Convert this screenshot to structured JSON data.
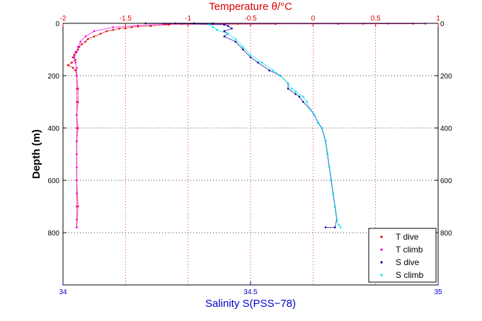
{
  "chart_data": {
    "type": "scatter",
    "title": "Temperature θ/°C",
    "xlabel": "Salinity S(PSS−78)",
    "ylabel": "Depth (m)",
    "x_bottom": {
      "label": "Salinity S(PSS−78)",
      "lim": [
        34,
        35
      ],
      "ticks": [
        34,
        34.5,
        35
      ],
      "tick_labels": [
        "34",
        "34.5",
        "35"
      ],
      "color": "#0000cc"
    },
    "x_top": {
      "label": "Temperature θ/°C",
      "lim": [
        -2,
        1
      ],
      "ticks": [
        -2,
        -1.5,
        -1,
        -0.5,
        0,
        0.5,
        1
      ],
      "tick_labels": [
        "-2",
        "-1.5",
        "-1",
        "-0.5",
        "0",
        "0.5",
        "1"
      ],
      "color": "#dd0000"
    },
    "y": {
      "label": "Depth (m)",
      "lim": [
        0,
        1000
      ],
      "reversed": true,
      "ticks": [
        0,
        200,
        400,
        600,
        800
      ],
      "tick_labels": [
        "0",
        "200",
        "400",
        "600",
        "800"
      ]
    },
    "grid": {
      "vertical": "red-dotted",
      "horizontal": "black-dotted"
    },
    "legend": {
      "placement": "bottom-right",
      "entries": [
        {
          "label": "T dive",
          "color": "#dd0000"
        },
        {
          "label": "T climb",
          "color": "#ee00ee"
        },
        {
          "label": "S dive",
          "color": "#000099"
        },
        {
          "label": "S climb",
          "color": "#00e5ee"
        }
      ]
    },
    "series": [
      {
        "name": "T dive",
        "axis": "top",
        "color": "#dd0000",
        "points": [
          [
            -1.05,
            2
          ],
          [
            -1.15,
            5
          ],
          [
            -1.3,
            10
          ],
          [
            -1.4,
            12
          ],
          [
            -1.45,
            15
          ],
          [
            -1.5,
            18
          ],
          [
            -1.55,
            20
          ],
          [
            -1.6,
            25
          ],
          [
            -1.65,
            30
          ],
          [
            -1.7,
            40
          ],
          [
            -1.75,
            50
          ],
          [
            -1.8,
            60
          ],
          [
            -1.82,
            70
          ],
          [
            -1.85,
            80
          ],
          [
            -1.87,
            90
          ],
          [
            -1.88,
            100
          ],
          [
            -1.9,
            110
          ],
          [
            -1.91,
            120
          ],
          [
            -1.92,
            130
          ],
          [
            -1.9,
            140
          ],
          [
            -1.93,
            150
          ],
          [
            -1.96,
            160
          ],
          [
            -1.92,
            170
          ],
          [
            -1.9,
            180
          ],
          [
            -1.89,
            200
          ],
          [
            -1.88,
            250
          ],
          [
            -1.88,
            300
          ],
          [
            -1.89,
            350
          ],
          [
            -1.88,
            400
          ],
          [
            -1.89,
            450
          ],
          [
            -1.89,
            500
          ],
          [
            -1.89,
            600
          ],
          [
            -1.88,
            700
          ],
          [
            -1.89,
            780
          ],
          [
            -0.6,
            2
          ],
          [
            -0.3,
            2
          ],
          [
            -0.8,
            3
          ],
          [
            0.4,
            1
          ],
          [
            0.8,
            1
          ],
          [
            -1.2,
            3
          ]
        ]
      },
      {
        "name": "T climb",
        "axis": "top",
        "color": "#ee00ee",
        "points": [
          [
            -1.0,
            1
          ],
          [
            -1.2,
            3
          ],
          [
            -1.4,
            8
          ],
          [
            -1.6,
            15
          ],
          [
            -1.75,
            30
          ],
          [
            -1.82,
            50
          ],
          [
            -1.86,
            70
          ],
          [
            -1.88,
            90
          ],
          [
            -1.89,
            110
          ],
          [
            -1.91,
            130
          ],
          [
            -1.9,
            150
          ],
          [
            -1.89,
            170
          ],
          [
            -1.89,
            200
          ],
          [
            -1.89,
            250
          ],
          [
            -1.89,
            300
          ],
          [
            -1.89,
            350
          ],
          [
            -1.89,
            400
          ],
          [
            -1.89,
            450
          ],
          [
            -1.89,
            500
          ],
          [
            -1.89,
            550
          ],
          [
            -1.89,
            600
          ],
          [
            -1.89,
            650
          ],
          [
            -1.89,
            700
          ],
          [
            -1.89,
            750
          ],
          [
            -1.89,
            780
          ],
          [
            0.6,
            1
          ],
          [
            0.9,
            1
          ],
          [
            0.2,
            2
          ],
          [
            -0.7,
            2
          ]
        ]
      },
      {
        "name": "S dive",
        "axis": "bottom",
        "color": "#000099",
        "points": [
          [
            34.4,
            0
          ],
          [
            34.43,
            5
          ],
          [
            34.44,
            10
          ],
          [
            34.45,
            20
          ],
          [
            34.43,
            30
          ],
          [
            34.44,
            40
          ],
          [
            34.43,
            50
          ],
          [
            34.46,
            70
          ],
          [
            34.48,
            100
          ],
          [
            34.5,
            130
          ],
          [
            34.52,
            150
          ],
          [
            34.55,
            180
          ],
          [
            34.58,
            200
          ],
          [
            34.6,
            230
          ],
          [
            34.6,
            250
          ],
          [
            34.62,
            270
          ],
          [
            34.63,
            280
          ],
          [
            34.64,
            300
          ],
          [
            34.66,
            330
          ],
          [
            34.67,
            350
          ],
          [
            34.68,
            380
          ],
          [
            34.69,
            400
          ],
          [
            34.7,
            450
          ],
          [
            34.705,
            500
          ],
          [
            34.71,
            550
          ],
          [
            34.715,
            600
          ],
          [
            34.72,
            650
          ],
          [
            34.725,
            700
          ],
          [
            34.73,
            750
          ],
          [
            34.725,
            780
          ],
          [
            34.7,
            780
          ],
          [
            34.22,
            0
          ],
          [
            34.35,
            0
          ],
          [
            34.3,
            0
          ]
        ]
      },
      {
        "name": "S climb",
        "axis": "bottom",
        "color": "#00e5ee",
        "points": [
          [
            34.39,
            5
          ],
          [
            34.4,
            15
          ],
          [
            34.41,
            25
          ],
          [
            34.44,
            40
          ],
          [
            34.46,
            60
          ],
          [
            34.48,
            90
          ],
          [
            34.5,
            120
          ],
          [
            34.53,
            150
          ],
          [
            34.56,
            180
          ],
          [
            34.58,
            200
          ],
          [
            34.6,
            230
          ],
          [
            34.61,
            250
          ],
          [
            34.62,
            260
          ],
          [
            34.64,
            280
          ],
          [
            34.65,
            300
          ],
          [
            34.66,
            330
          ],
          [
            34.67,
            350
          ],
          [
            34.68,
            380
          ],
          [
            34.69,
            400
          ],
          [
            34.7,
            450
          ],
          [
            34.705,
            500
          ],
          [
            34.71,
            550
          ],
          [
            34.715,
            600
          ],
          [
            34.72,
            650
          ],
          [
            34.725,
            700
          ],
          [
            34.73,
            750
          ],
          [
            34.735,
            770
          ],
          [
            34.74,
            780
          ]
        ]
      }
    ]
  }
}
